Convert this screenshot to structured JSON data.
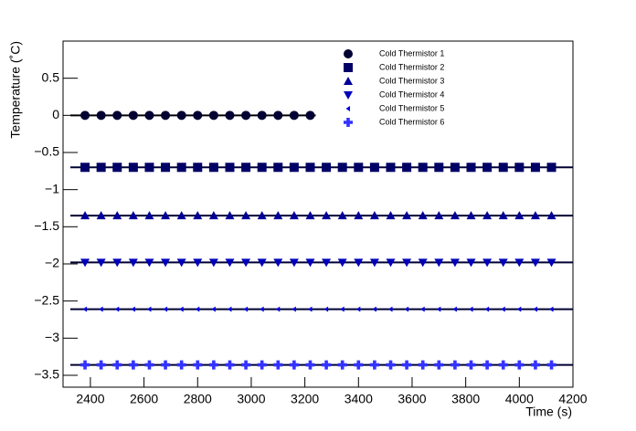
{
  "chart_data": {
    "type": "scatter",
    "x_label": "Time (s)",
    "y_label": "Temperature (˚C)",
    "xlim": [
      2298,
      4200
    ],
    "ylim": [
      -3.66,
      1.0
    ],
    "xticks": [
      2400,
      2600,
      2800,
      3000,
      3200,
      3400,
      3600,
      3800,
      4000,
      4200
    ],
    "yticks": [
      {
        "value": -3.5,
        "label": "−3.5"
      },
      {
        "value": -3,
        "label": "−3"
      },
      {
        "value": -2.5,
        "label": "−2.5"
      },
      {
        "value": -2,
        "label": "−2"
      },
      {
        "value": -1.5,
        "label": "−1.5"
      },
      {
        "value": -1,
        "label": "−1"
      },
      {
        "value": -0.5,
        "label": "−0.5"
      },
      0,
      0.5
    ],
    "legend": "top-right",
    "series": [
      {
        "name": "Cold Thermistor 1",
        "color": "#000033",
        "marker": "circle",
        "x": [
          2380,
          2440,
          2500,
          2560,
          2620,
          2680,
          2740,
          2800,
          2860,
          2920,
          2980,
          3040,
          3100,
          3160,
          3220
        ],
        "values": [
          0,
          0,
          0,
          0,
          0,
          0,
          0,
          0,
          0,
          0,
          0,
          0,
          0,
          0,
          0
        ]
      },
      {
        "name": "Cold Thermistor 2",
        "color": "#000066",
        "marker": "square",
        "x": [
          2380,
          2440,
          2500,
          2560,
          2620,
          2680,
          2740,
          2800,
          2860,
          2920,
          2980,
          3040,
          3100,
          3160,
          3220,
          3280,
          3340,
          3400,
          3460,
          3520,
          3580,
          3640,
          3700,
          3760,
          3820,
          3880,
          3940,
          4000,
          4060,
          4120
        ],
        "values": [
          -0.7,
          -0.7,
          -0.7,
          -0.7,
          -0.7,
          -0.7,
          -0.7,
          -0.7,
          -0.7,
          -0.7,
          -0.7,
          -0.7,
          -0.7,
          -0.7,
          -0.7,
          -0.7,
          -0.7,
          -0.7,
          -0.7,
          -0.7,
          -0.7,
          -0.7,
          -0.7,
          -0.7,
          -0.7,
          -0.7,
          -0.7,
          -0.7,
          -0.7,
          -0.7
        ]
      },
      {
        "name": "Cold Thermistor 3",
        "color": "#000099",
        "marker": "triangle-up",
        "x": [
          2380,
          2440,
          2500,
          2560,
          2620,
          2680,
          2740,
          2800,
          2860,
          2920,
          2980,
          3040,
          3100,
          3160,
          3220,
          3280,
          3340,
          3400,
          3460,
          3520,
          3580,
          3640,
          3700,
          3760,
          3820,
          3880,
          3940,
          4000,
          4060,
          4120
        ],
        "values": [
          -1.35,
          -1.35,
          -1.35,
          -1.35,
          -1.35,
          -1.35,
          -1.35,
          -1.35,
          -1.35,
          -1.35,
          -1.35,
          -1.35,
          -1.35,
          -1.35,
          -1.35,
          -1.35,
          -1.35,
          -1.35,
          -1.35,
          -1.35,
          -1.35,
          -1.35,
          -1.35,
          -1.35,
          -1.35,
          -1.35,
          -1.35,
          -1.35,
          -1.35,
          -1.35
        ]
      },
      {
        "name": "Cold Thermistor 4",
        "color": "#0000bb",
        "marker": "triangle-down",
        "x": [
          2380,
          2440,
          2500,
          2560,
          2620,
          2680,
          2740,
          2800,
          2860,
          2920,
          2980,
          3040,
          3100,
          3160,
          3220,
          3280,
          3340,
          3400,
          3460,
          3520,
          3580,
          3640,
          3700,
          3760,
          3820,
          3880,
          3940,
          4000,
          4060,
          4120
        ],
        "values": [
          -1.98,
          -1.98,
          -1.98,
          -1.98,
          -1.98,
          -1.98,
          -1.98,
          -1.98,
          -1.98,
          -1.98,
          -1.98,
          -1.98,
          -1.98,
          -1.98,
          -1.98,
          -1.98,
          -1.98,
          -1.98,
          -1.98,
          -1.98,
          -1.98,
          -1.98,
          -1.98,
          -1.98,
          -1.98,
          -1.98,
          -1.98,
          -1.98,
          -1.98,
          -1.98
        ]
      },
      {
        "name": "Cold Thermistor 5",
        "color": "#0000dd",
        "marker": "triangle-left",
        "x": [
          2380,
          2440,
          2500,
          2560,
          2620,
          2680,
          2740,
          2800,
          2860,
          2920,
          2980,
          3040,
          3100,
          3160,
          3220,
          3280,
          3340,
          3400,
          3460,
          3520,
          3580,
          3640,
          3700,
          3760,
          3820,
          3880,
          3940,
          4000,
          4060,
          4120
        ],
        "values": [
          -2.61,
          -2.61,
          -2.61,
          -2.61,
          -2.61,
          -2.61,
          -2.61,
          -2.61,
          -2.61,
          -2.61,
          -2.61,
          -2.61,
          -2.61,
          -2.61,
          -2.61,
          -2.61,
          -2.61,
          -2.61,
          -2.61,
          -2.61,
          -2.61,
          -2.61,
          -2.61,
          -2.61,
          -2.61,
          -2.61,
          -2.61,
          -2.61,
          -2.61,
          -2.61
        ]
      },
      {
        "name": "Cold Thermistor 6",
        "color": "#3333ff",
        "marker": "cross",
        "x": [
          2380,
          2440,
          2500,
          2560,
          2620,
          2680,
          2740,
          2800,
          2860,
          2920,
          2980,
          3040,
          3100,
          3160,
          3220,
          3280,
          3340,
          3400,
          3460,
          3520,
          3580,
          3640,
          3700,
          3760,
          3820,
          3880,
          3940,
          4000,
          4060,
          4120
        ],
        "values": [
          -3.36,
          -3.36,
          -3.36,
          -3.36,
          -3.36,
          -3.36,
          -3.36,
          -3.36,
          -3.36,
          -3.36,
          -3.36,
          -3.36,
          -3.36,
          -3.36,
          -3.36,
          -3.36,
          -3.36,
          -3.36,
          -3.36,
          -3.36,
          -3.36,
          -3.36,
          -3.36,
          -3.36,
          -3.36,
          -3.36,
          -3.36,
          -3.36,
          -3.36,
          -3.36
        ]
      }
    ]
  }
}
